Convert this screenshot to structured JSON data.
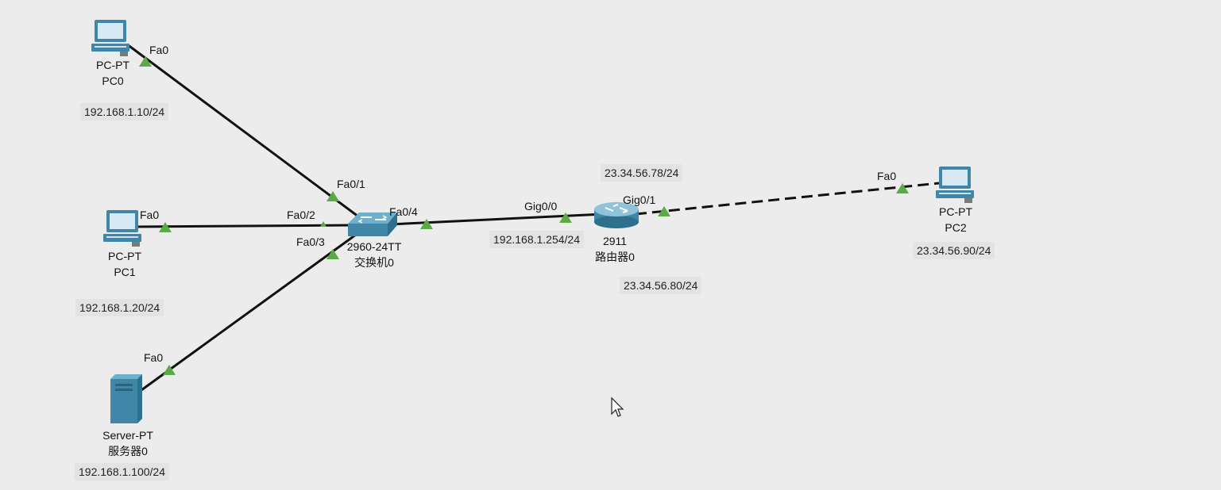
{
  "colors": {
    "canvas": "#ececec",
    "link": "#111111",
    "port_up": "#5aaa46",
    "device_blue": "#3f86a8",
    "ip_label_bg": "#e3e3e3"
  },
  "devices": {
    "pc0": {
      "model": "PC-PT",
      "name": "PC0",
      "ip": "192.168.1.10/24",
      "icon": "pc-icon"
    },
    "pc1": {
      "model": "PC-PT",
      "name": "PC1",
      "ip": "192.168.1.20/24",
      "icon": "pc-icon"
    },
    "server0": {
      "model": "Server-PT",
      "name": "服务器0",
      "ip": "192.168.1.100/24",
      "icon": "server-icon"
    },
    "switch0": {
      "model": "2960-24TT",
      "name": "交换机0",
      "icon": "switch-icon"
    },
    "router0": {
      "model": "2911",
      "name": "路由器0",
      "ip_lan": "192.168.1.254/24",
      "ip_wan": "23.34.56.78/24",
      "ip_extra": "23.34.56.80/24",
      "icon": "router-icon"
    },
    "pc2": {
      "model": "PC-PT",
      "name": "PC2",
      "ip": "23.34.56.90/24",
      "icon": "pc-icon"
    }
  },
  "ports": {
    "pc0_fa0": "Fa0",
    "pc1_fa0": "Fa0",
    "server0_fa0": "Fa0",
    "switch_fa0_1": "Fa0/1",
    "switch_fa0_2": "Fa0/2",
    "switch_fa0_3": "Fa0/3",
    "switch_fa0_4": "Fa0/4",
    "router_gig0_0": "Gig0/0",
    "router_gig0_1": "Gig0/1",
    "pc2_fa0": "Fa0"
  },
  "links": [
    {
      "from": "PC0",
      "to": "交换机0",
      "style": "solid"
    },
    {
      "from": "PC1",
      "to": "交换机0",
      "style": "solid"
    },
    {
      "from": "服务器0",
      "to": "交换机0",
      "style": "solid"
    },
    {
      "from": "交换机0",
      "to": "路由器0",
      "style": "solid"
    },
    {
      "from": "路由器0",
      "to": "PC2",
      "style": "dashed"
    }
  ]
}
